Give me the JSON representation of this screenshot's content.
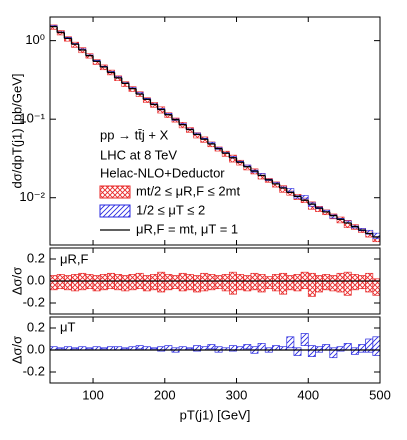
{
  "chart_data": [
    {
      "type": "histogram",
      "ylabel": "dσ/dpT(j1) [pb/GeV]",
      "log_scale": true,
      "xlim": [
        40,
        500
      ],
      "ylim": [
        0.0025,
        2
      ],
      "yticks": [
        {
          "value": 1,
          "label": "10⁰"
        },
        {
          "value": 0.1,
          "label": "10⁻¹"
        },
        {
          "value": 0.01,
          "label": "10⁻²"
        }
      ],
      "annotations": [
        "pp → tt̄j + X",
        "LHC at 8 TeV",
        "Helac-NLO+Deductor"
      ],
      "bins": [
        40,
        50,
        60,
        70,
        80,
        90,
        100,
        110,
        120,
        130,
        140,
        150,
        160,
        170,
        180,
        190,
        200,
        210,
        220,
        230,
        240,
        250,
        260,
        270,
        280,
        290,
        300,
        310,
        320,
        330,
        340,
        350,
        360,
        370,
        380,
        390,
        400,
        410,
        420,
        430,
        440,
        450,
        460,
        470,
        480,
        490,
        500
      ],
      "series": [
        {
          "name": "μR,F = mt, μT = 1",
          "color": "#000000",
          "values": [
            1.51,
            1.27,
            1.07,
            0.902,
            0.762,
            0.644,
            0.546,
            0.463,
            0.394,
            0.336,
            0.286,
            0.245,
            0.209,
            0.179,
            0.154,
            0.133,
            0.114,
            0.0986,
            0.0852,
            0.0738,
            0.064,
            0.0556,
            0.0484,
            0.0422,
            0.0369,
            0.0323,
            0.0283,
            0.0248,
            0.0218,
            0.0192,
            0.0169,
            0.015,
            0.0133,
            0.0117,
            0.0104,
            0.00929,
            0.00828,
            0.00739,
            0.0066,
            0.00592,
            0.00531,
            0.00477,
            0.00429,
            0.00387,
            0.0035,
            0.00316
          ]
        }
      ]
    },
    {
      "type": "band",
      "ylabel": "Δσ/σ",
      "label": "μR,F",
      "name": "mt/2 ≤ μR,F ≤ 2mt",
      "color": "#e82a2a",
      "ylim": [
        -0.3,
        0.3
      ],
      "yticks": [
        {
          "value": 0.2,
          "label": "0.2"
        },
        {
          "value": 0,
          "label": "0.0"
        },
        {
          "value": -0.2,
          "label": "-0.2"
        }
      ],
      "upper": [
        0.05,
        0.06,
        0.05,
        0.06,
        0.07,
        0.06,
        0.05,
        0.06,
        0.07,
        0.06,
        0.05,
        0.06,
        0.07,
        0.05,
        0.06,
        0.08,
        0.06,
        0.05,
        0.07,
        0.06,
        0.05,
        0.07,
        0.06,
        0.05,
        0.06,
        0.08,
        0.06,
        0.05,
        0.07,
        0.06,
        0.04,
        0.06,
        0.07,
        0.05,
        0.06,
        0.08,
        0.07,
        0.05,
        0.06,
        0.05,
        0.07,
        0.08,
        0.06,
        0.05,
        0.07,
        0.02
      ],
      "lower": [
        -0.08,
        -0.07,
        -0.08,
        -0.09,
        -0.08,
        -0.07,
        -0.09,
        -0.08,
        -0.07,
        -0.08,
        -0.09,
        -0.08,
        -0.07,
        -0.09,
        -0.08,
        -0.1,
        -0.08,
        -0.07,
        -0.09,
        -0.08,
        -0.1,
        -0.09,
        -0.08,
        -0.07,
        -0.09,
        -0.12,
        -0.08,
        -0.09,
        -0.08,
        -0.1,
        -0.07,
        -0.09,
        -0.12,
        -0.08,
        -0.09,
        -0.07,
        -0.14,
        -0.1,
        -0.08,
        -0.09,
        -0.1,
        -0.13,
        -0.08,
        -0.07,
        -0.1,
        -0.13
      ]
    },
    {
      "type": "band",
      "ylabel": "Δσ/σ",
      "label": "μT",
      "name": "1/2 ≤ μT ≤ 2",
      "color": "#2a2ae0",
      "xlabel": "pT(j1) [GeV]",
      "xticks": [
        100,
        200,
        300,
        400,
        500
      ],
      "ylim": [
        -0.3,
        0.3
      ],
      "yticks": [
        {
          "value": 0.2,
          "label": "0.2"
        },
        {
          "value": 0,
          "label": "0.0"
        },
        {
          "value": -0.2,
          "label": "-0.2"
        }
      ],
      "upper": [
        0.03,
        0.02,
        0.03,
        0.02,
        0.03,
        0.02,
        0.03,
        0.02,
        0.03,
        0.03,
        0.02,
        0.03,
        0.04,
        0.03,
        0.02,
        0.03,
        0.04,
        0.02,
        0.03,
        0.02,
        0.04,
        0.03,
        0.05,
        0.03,
        0.02,
        0.04,
        0.03,
        0.05,
        0.03,
        0.06,
        0.02,
        0.04,
        0.03,
        0.12,
        0.02,
        0.15,
        0.04,
        0.03,
        0.05,
        0.02,
        0.03,
        0.06,
        0.02,
        0.05,
        0.1,
        0.12
      ],
      "lower": [
        0,
        0.01,
        0,
        0.01,
        0,
        0.01,
        0,
        0.01,
        0,
        0,
        0.01,
        0,
        0.01,
        0,
        0.01,
        -0.01,
        0,
        -0.02,
        0,
        0.01,
        -0.01,
        0,
        0.01,
        -0.02,
        0,
        -0.01,
        0,
        0.01,
        -0.03,
        0,
        -0.02,
        0,
        0,
        0.02,
        -0.05,
        0.04,
        -0.06,
        -0.02,
        0,
        -0.07,
        -0.01,
        0,
        -0.04,
        -0.02,
        -0.02,
        -0.05
      ]
    }
  ]
}
